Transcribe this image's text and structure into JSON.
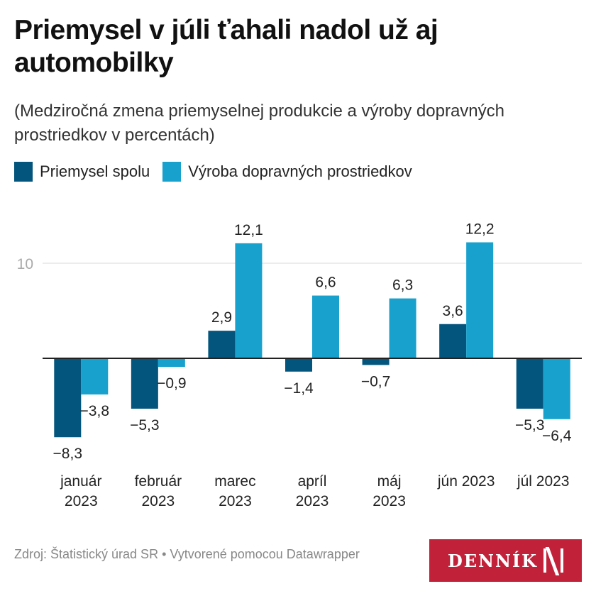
{
  "header": {
    "title": "Priemysel v júli ťahali nadol už aj automobilky",
    "subtitle": "(Medziročná zmena priemyselnej produkcie a výroby dopravných prostriedkov v percentách)"
  },
  "colors": {
    "series1": "#04557d",
    "series2": "#18a1cd",
    "gridline": "#e5e5e5",
    "zero_line": "#222222",
    "axis_label": "#aaaaaa",
    "brand": "#c1223a"
  },
  "chart_data": {
    "type": "bar",
    "title": "Priemysel v júli ťahali nadol už aj automobilky",
    "subtitle": "(Medziročná zmena priemyselnej produkcie a výroby dopravných prostriedkov v percentách)",
    "categories": [
      [
        "január",
        "2023"
      ],
      [
        "február",
        "2023"
      ],
      [
        "marec",
        "2023"
      ],
      [
        "apríl",
        "2023"
      ],
      [
        "máj",
        "2023"
      ],
      [
        "jún 2023"
      ],
      [
        "júl 2023"
      ]
    ],
    "series": [
      {
        "name": "Priemysel spolu",
        "values": [
          -8.3,
          -5.3,
          2.9,
          -1.4,
          -0.7,
          3.6,
          -5.3
        ],
        "labels": [
          "−8,3",
          "−5,3",
          "2,9",
          "−1,4",
          "−0,7",
          "3,6",
          "−5,3"
        ]
      },
      {
        "name": "Výroba dopravných prostriedkov",
        "values": [
          -3.8,
          -0.9,
          12.1,
          6.6,
          6.3,
          12.2,
          -6.4
        ],
        "labels": [
          "−3,8",
          "−0,9",
          "12,1",
          "6,6",
          "6,3",
          "12,2",
          "−6,4"
        ]
      }
    ],
    "yticks": [
      {
        "value": 10,
        "label": "10"
      }
    ],
    "ylim": [
      -10,
      15
    ],
    "xlabel": "",
    "ylabel": "",
    "grid": true,
    "legend": "top-left"
  },
  "footer": {
    "source": "Zdroj: Štatistický úrad SR • Vytvorené pomocou Datawrapper",
    "logo_text": "DENNÍK"
  }
}
